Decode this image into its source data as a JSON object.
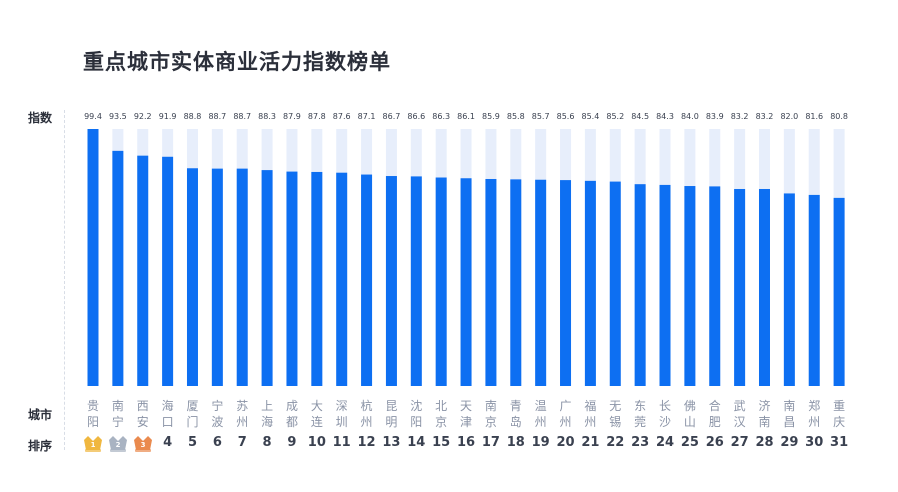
{
  "title": "重点城市实体商业活力指数榜单",
  "labels": {
    "index": "指数",
    "city": "城市",
    "rank": "排序"
  },
  "colors": {
    "bar": "#0d6ff2",
    "track": "#e7eefb",
    "gold": "#f0b73f",
    "silver": "#a9b3c2",
    "bronze": "#ea8a4e"
  },
  "chart_data": {
    "type": "bar",
    "categories": [
      "贵阳",
      "南宁",
      "西安",
      "海口",
      "厦门",
      "宁波",
      "苏州",
      "上海",
      "成都",
      "大连",
      "深圳",
      "杭州",
      "昆明",
      "沈阳",
      "北京",
      "天津",
      "南京",
      "青岛",
      "温州",
      "广州",
      "福州",
      "无锡",
      "东莞",
      "长沙",
      "佛山",
      "合肥",
      "武汉",
      "济南",
      "南昌",
      "郑州",
      "重庆"
    ],
    "values": [
      99.4,
      93.5,
      92.2,
      91.9,
      88.8,
      88.7,
      88.7,
      88.3,
      87.9,
      87.8,
      87.6,
      87.1,
      86.7,
      86.6,
      86.3,
      86.1,
      85.9,
      85.8,
      85.7,
      85.6,
      85.4,
      85.2,
      84.5,
      84.3,
      84.0,
      83.9,
      83.2,
      83.2,
      82.0,
      81.6,
      80.8
    ],
    "value_labels": [
      "99.4",
      "93.5",
      "92.2",
      "91.9",
      "88.8",
      "88.7",
      "88.7",
      "88.3",
      "87.9",
      "87.8",
      "87.6",
      "87.1",
      "86.7",
      "86.6",
      "86.3",
      "86.1",
      "85.9",
      "85.8",
      "85.7",
      "85.6",
      "85.4",
      "85.2",
      "84.5",
      "84.3",
      "84.0",
      "83.9",
      "83.2",
      "83.2",
      "82.0",
      "81.6",
      "80.8"
    ],
    "ranks": [
      "1",
      "2",
      "3",
      "4",
      "5",
      "6",
      "7",
      "8",
      "9",
      "10",
      "11",
      "12",
      "13",
      "14",
      "15",
      "16",
      "17",
      "18",
      "19",
      "20",
      "21",
      "22",
      "23",
      "24",
      "25",
      "26",
      "27",
      "28",
      "29",
      "30",
      "31"
    ]
  }
}
